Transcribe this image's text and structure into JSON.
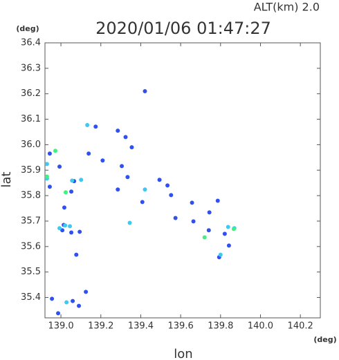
{
  "chart_data": {
    "type": "scatter",
    "title": "2020/01/06 01:47:27",
    "subtitle": "ALT(km) 2.0",
    "y_unit": "(deg)",
    "x_unit": "(deg)",
    "x_label": "lon",
    "y_label": "lat",
    "xlim": [
      138.92,
      140.3
    ],
    "ylim": [
      35.32,
      36.4
    ],
    "xticks": [
      {
        "value": 139,
        "label": "139.0"
      },
      139.2,
      139.4,
      139.6,
      139.8,
      {
        "value": 140,
        "label": "140.0"
      },
      140.2
    ],
    "yticks": [
      35.4,
      35.5,
      35.6,
      35.7,
      35.8,
      35.9,
      {
        "value": 36,
        "label": "36.0"
      },
      36.1,
      36.2,
      36.3,
      36.4
    ],
    "series": [
      {
        "color": "#3050f0",
        "x": [
          138.944,
          138.993,
          138.944,
          139.066,
          139.052,
          139.017,
          139.014,
          139.007,
          139.052,
          139.094,
          139.077,
          138.955,
          138.986,
          139.059,
          139.125,
          139.09,
          139.139,
          139.174,
          139.209,
          139.285,
          139.305,
          139.285,
          139.324,
          139.355,
          139.334,
          139.421,
          139.494,
          139.534,
          139.552,
          139.574,
          139.657,
          139.664,
          139.786,
          139.744,
          139.741,
          139.821,
          139.793,
          139.842,
          139.408
        ],
        "values": [
          35.965,
          35.914,
          35.835,
          35.857,
          35.816,
          35.753,
          35.685,
          35.664,
          35.655,
          35.658,
          35.568,
          35.395,
          35.338,
          35.386,
          35.422,
          35.367,
          35.965,
          36.071,
          35.938,
          35.824,
          35.916,
          36.055,
          36.03,
          35.99,
          35.873,
          36.21,
          35.862,
          35.84,
          35.802,
          35.712,
          35.772,
          35.699,
          35.78,
          35.734,
          35.664,
          35.65,
          35.558,
          35.604,
          35.775
        ]
      },
      {
        "color": "#40c8f0",
        "x": [
          138.93,
          138.93,
          138.993,
          139.021,
          139.045,
          139.056,
          139.101,
          139.132,
          139.028,
          139.8,
          139.838,
          139.869,
          139.345,
          139.421
        ],
        "values": [
          35.924,
          35.867,
          35.672,
          35.683,
          35.68,
          35.859,
          35.862,
          36.077,
          35.381,
          35.568,
          35.677,
          35.672,
          35.693,
          35.824
        ]
      },
      {
        "color": "#40f080",
        "x": [
          138.972,
          138.93,
          139.024,
          139.72,
          139.866
        ],
        "values": [
          35.976,
          35.875,
          35.813,
          35.636,
          35.669
        ]
      }
    ]
  }
}
